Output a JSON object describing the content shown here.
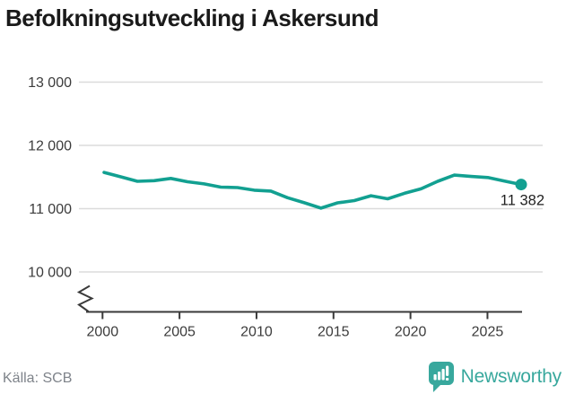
{
  "title": "Befolkningsutveckling i Askersund",
  "source": "Källa: SCB",
  "branding": {
    "name": "Newsworthy",
    "icon": "bar-chart-speech-bubble-icon"
  },
  "colors": {
    "line": "#12A091",
    "brand": "#38A89D",
    "grid": "#DBDBDB",
    "axis": "#3A3A3A",
    "tick_text": "#3C3C3C",
    "title_text": "#1A1A1A",
    "muted_text": "#7E838A",
    "end_label_text": "#1F1F1F"
  },
  "chart_data": {
    "type": "line",
    "title": "Befolkningsutveckling i Askersund",
    "series_name": "Befolkning",
    "x": [
      2000,
      2001,
      2002,
      2003,
      2004,
      2005,
      2006,
      2007,
      2008,
      2009,
      2010,
      2011,
      2012,
      2013,
      2014,
      2015,
      2016,
      2017,
      2018,
      2019,
      2020,
      2021,
      2022,
      2023,
      2024,
      2025
    ],
    "values": [
      11573,
      11503,
      11432,
      11443,
      11478,
      11425,
      11391,
      11341,
      11333,
      11292,
      11278,
      11173,
      11094,
      11008,
      11092,
      11128,
      11204,
      11156,
      11243,
      11314,
      11432,
      11530,
      11509,
      11492,
      11436,
      11382
    ],
    "x_ticks": [
      "2000",
      "2005",
      "2010",
      "2015",
      "2020",
      "2025"
    ],
    "y_ticks": [
      {
        "label": "10 000",
        "value": 10000
      },
      {
        "label": "11 000",
        "value": 11000
      },
      {
        "label": "12 000",
        "value": 12000
      },
      {
        "label": "13 000",
        "value": 13000
      }
    ],
    "ylim": [
      9700,
      13300
    ],
    "grid": "horizontal-only",
    "legend": "none",
    "axis_break": true,
    "end_label": "11 382",
    "end_value": 11382
  }
}
